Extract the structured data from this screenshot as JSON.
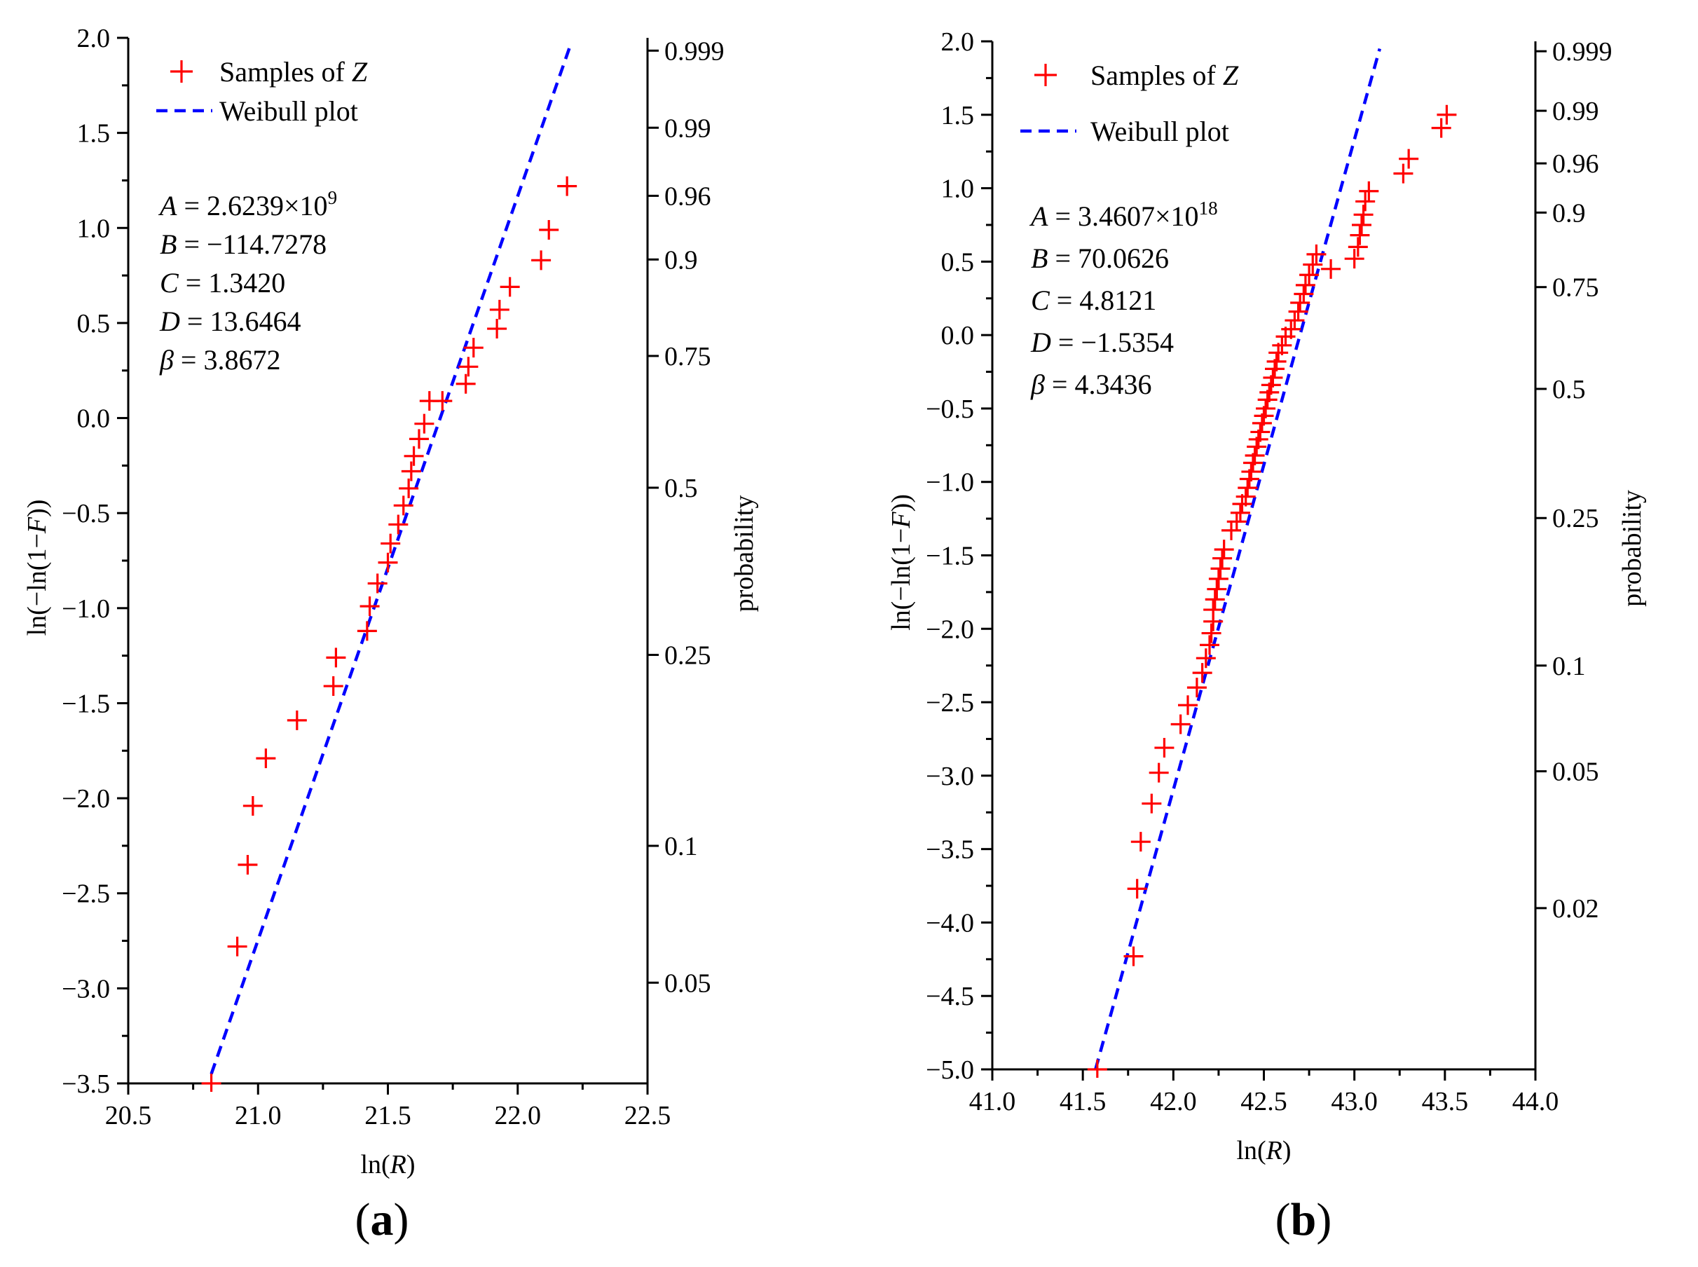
{
  "colors": {
    "samples": "#ff0000",
    "fit": "#0000ff",
    "axis": "#000000"
  },
  "chart_data": [
    {
      "type": "scatter",
      "panel_label": [
        "(",
        "a",
        ")"
      ],
      "xlabel": [
        "ln(",
        "R",
        ")"
      ],
      "ylabel": [
        "ln(−ln(1−",
        "F",
        "))"
      ],
      "y2label": "probability",
      "xlim": [
        20.5,
        22.5
      ],
      "ylim": [
        -3.5,
        2.0
      ],
      "xticks": [
        20.5,
        21.0,
        21.5,
        22.0,
        22.5
      ],
      "xtick_labels": [
        "20.5",
        "21.0",
        "21.5",
        "22.0",
        "22.5"
      ],
      "yticks": [
        -3.5,
        -3.0,
        -2.5,
        -2.0,
        -1.5,
        -1.0,
        -0.5,
        0.0,
        0.5,
        1.0,
        1.5,
        2.0
      ],
      "ytick_labels": [
        "−3.5",
        "−3.0",
        "−2.5",
        "−2.0",
        "−1.5",
        "−1.0",
        "−0.5",
        "0.0",
        "0.5",
        "1.0",
        "1.5",
        "2.0"
      ],
      "y2ticks": [
        0.05,
        0.1,
        0.25,
        0.5,
        0.75,
        0.9,
        0.96,
        0.99,
        0.999
      ],
      "y2tick_labels": [
        "0.05",
        "0.1",
        "0.25",
        "0.5",
        "0.75",
        "0.9",
        "0.96",
        "0.99",
        "0.999"
      ],
      "legend": {
        "position": "top-left",
        "samples_label": [
          "Samples of ",
          "Z"
        ],
        "fit_label": "Weibull plot"
      },
      "parameters": [
        {
          "sym": "A",
          "value": "2.6239×10",
          "sup": "9"
        },
        {
          "sym": "B",
          "value": "−114.7278",
          "sup": ""
        },
        {
          "sym": "C",
          "value": "1.3420",
          "sup": ""
        },
        {
          "sym": "D",
          "value": "13.6464",
          "sup": ""
        },
        {
          "sym": "β",
          "value": " 3.8672",
          "sup": ""
        }
      ],
      "series": [
        {
          "name": "Samples of Z",
          "kind": "points",
          "x": [
            20.82,
            20.92,
            20.96,
            20.98,
            21.03,
            21.15,
            21.29,
            21.3,
            21.42,
            21.43,
            21.46,
            21.5,
            21.51,
            21.54,
            21.56,
            21.58,
            21.59,
            21.6,
            21.62,
            21.64,
            21.66,
            21.71,
            21.8,
            21.81,
            21.83,
            21.92,
            21.93,
            21.97,
            22.09,
            22.12,
            22.19
          ],
          "y": [
            -3.5,
            -2.78,
            -2.35,
            -2.04,
            -1.79,
            -1.59,
            -1.41,
            -1.26,
            -1.12,
            -0.99,
            -0.87,
            -0.76,
            -0.66,
            -0.56,
            -0.46,
            -0.37,
            -0.28,
            -0.2,
            -0.11,
            -0.03,
            0.09,
            0.09,
            0.18,
            0.27,
            0.37,
            0.47,
            0.57,
            0.69,
            0.83,
            0.99,
            1.22
          ]
        },
        {
          "name": "Weibull plot",
          "kind": "line",
          "x": [
            20.82,
            22.2
          ],
          "y": [
            -3.45,
            1.95
          ]
        }
      ]
    },
    {
      "type": "scatter",
      "panel_label": [
        "(",
        "b",
        ")"
      ],
      "xlabel": [
        "ln(",
        "R",
        ")"
      ],
      "ylabel": [
        "ln(−ln(1−",
        "F",
        "))"
      ],
      "y2label": "probability",
      "xlim": [
        41.0,
        44.0
      ],
      "ylim": [
        -5.0,
        2.0
      ],
      "xticks": [
        41.0,
        41.5,
        42.0,
        42.5,
        43.0,
        43.5,
        44.0
      ],
      "xtick_labels": [
        "41.0",
        "41.5",
        "42.0",
        "42.5",
        "43.0",
        "43.5",
        "44.0"
      ],
      "yticks": [
        -5.0,
        -4.5,
        -4.0,
        -3.5,
        -3.0,
        -2.5,
        -2.0,
        -1.5,
        -1.0,
        -0.5,
        0.0,
        0.5,
        1.0,
        1.5,
        2.0
      ],
      "ytick_labels": [
        "−5.0",
        "−4.5",
        "−4.0",
        "−3.5",
        "−3.0",
        "−2.5",
        "−2.0",
        "−1.5",
        "−1.0",
        "−0.5",
        "0.0",
        "0.5",
        "1.0",
        "1.5",
        "2.0"
      ],
      "y2ticks": [
        0.02,
        0.05,
        0.1,
        0.25,
        0.5,
        0.75,
        0.9,
        0.96,
        0.99,
        0.999
      ],
      "y2tick_labels": [
        "0.02",
        "0.05",
        "0.1",
        "0.25",
        "0.5",
        "0.75",
        "0.9",
        "0.96",
        "0.99",
        "0.999"
      ],
      "legend": {
        "position": "top-left",
        "samples_label": [
          "Samples of ",
          "Z"
        ],
        "fit_label": "Weibull plot"
      },
      "parameters": [
        {
          "sym": "A",
          "value": "3.4607×10",
          "sup": "18"
        },
        {
          "sym": "B",
          "value": "70.0626",
          "sup": ""
        },
        {
          "sym": "C",
          "value": "4.8121",
          "sup": ""
        },
        {
          "sym": "D",
          "value": "−1.5354",
          "sup": ""
        },
        {
          "sym": "β",
          "value": "4.3436",
          "sup": ""
        }
      ],
      "series": [
        {
          "name": "Samples of Z",
          "kind": "points",
          "x": [
            41.58,
            41.78,
            41.8,
            41.82,
            41.88,
            41.92,
            41.95,
            42.04,
            42.08,
            42.13,
            42.16,
            42.18,
            42.2,
            42.21,
            42.22,
            42.22,
            42.23,
            42.24,
            42.25,
            42.26,
            42.27,
            42.28,
            42.32,
            42.35,
            42.37,
            42.38,
            42.4,
            42.41,
            42.42,
            42.43,
            42.44,
            42.45,
            42.46,
            42.47,
            42.48,
            42.49,
            42.5,
            42.51,
            42.52,
            42.53,
            42.54,
            42.55,
            42.56,
            42.57,
            42.58,
            42.6,
            42.62,
            42.65,
            42.67,
            42.69,
            42.7,
            42.72,
            42.73,
            42.75,
            42.77,
            42.79,
            42.87,
            43.0,
            43.02,
            43.03,
            43.04,
            43.05,
            43.06,
            43.08,
            43.27,
            43.3,
            43.48,
            43.51
          ],
          "y": [
            -5.0,
            -4.23,
            -3.77,
            -3.45,
            -3.19,
            -2.98,
            -2.81,
            -2.65,
            -2.52,
            -2.4,
            -2.3,
            -2.2,
            -2.11,
            -2.03,
            -1.95,
            -1.87,
            -1.8,
            -1.73,
            -1.66,
            -1.59,
            -1.52,
            -1.46,
            -1.33,
            -1.27,
            -1.21,
            -1.15,
            -1.1,
            -1.04,
            -0.98,
            -0.93,
            -0.87,
            -0.82,
            -0.76,
            -0.71,
            -0.66,
            -0.6,
            -0.55,
            -0.5,
            -0.44,
            -0.39,
            -0.34,
            -0.29,
            -0.23,
            -0.18,
            -0.12,
            -0.07,
            -0.01,
            0.04,
            0.1,
            0.16,
            0.22,
            0.28,
            0.34,
            0.41,
            0.48,
            0.55,
            0.45,
            0.52,
            0.6,
            0.68,
            0.75,
            0.82,
            0.91,
            0.98,
            1.1,
            1.2,
            1.41,
            1.5
          ]
        },
        {
          "name": "Weibull plot",
          "kind": "line",
          "x": [
            41.57,
            43.14
          ],
          "y": [
            -5.0,
            1.95
          ]
        }
      ]
    }
  ]
}
